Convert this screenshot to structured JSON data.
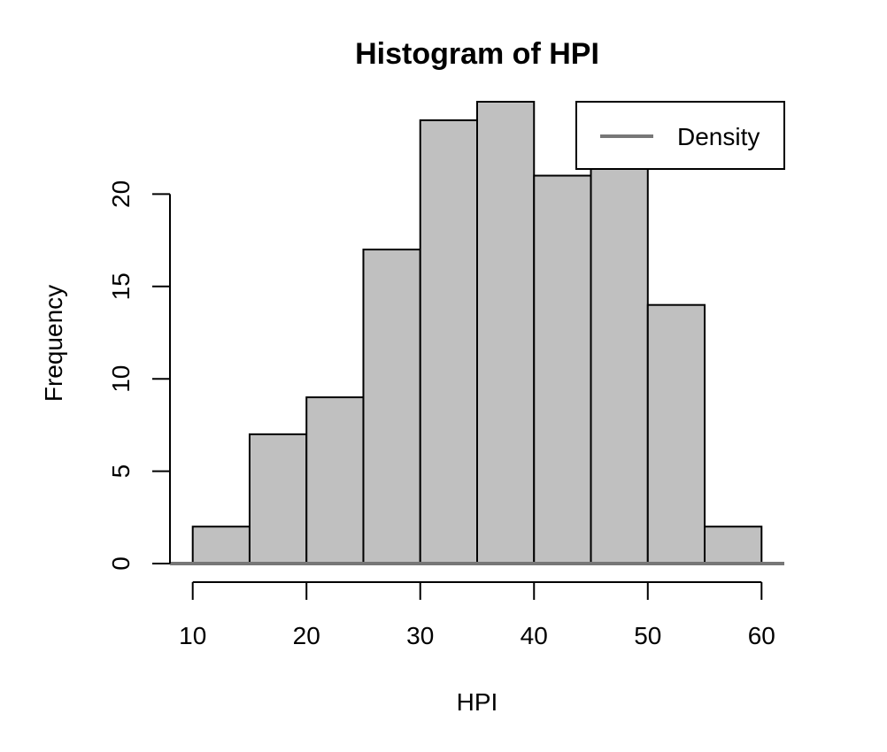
{
  "chart_data": {
    "type": "bar",
    "title": "Histogram of HPI",
    "xlabel": "HPI",
    "ylabel": "Frequency",
    "bins": [
      {
        "start": 10,
        "end": 15,
        "count": 2
      },
      {
        "start": 15,
        "end": 20,
        "count": 7
      },
      {
        "start": 20,
        "end": 25,
        "count": 9
      },
      {
        "start": 25,
        "end": 30,
        "count": 17
      },
      {
        "start": 30,
        "end": 35,
        "count": 24
      },
      {
        "start": 35,
        "end": 40,
        "count": 25
      },
      {
        "start": 40,
        "end": 45,
        "count": 21
      },
      {
        "start": 45,
        "end": 50,
        "count": 22
      },
      {
        "start": 50,
        "end": 55,
        "count": 14
      },
      {
        "start": 55,
        "end": 60,
        "count": 2
      }
    ],
    "xticks": [
      10,
      20,
      30,
      40,
      50,
      60
    ],
    "yticks": [
      0,
      5,
      10,
      15,
      20
    ],
    "xlim": [
      8,
      62
    ],
    "ylim": [
      0,
      25
    ],
    "grid": false,
    "legend": {
      "position": "top-right",
      "entries": [
        {
          "label": "Density",
          "color": "#777777"
        }
      ]
    },
    "density_line_color": "#777777",
    "bar_color": "#c0c0c0"
  }
}
